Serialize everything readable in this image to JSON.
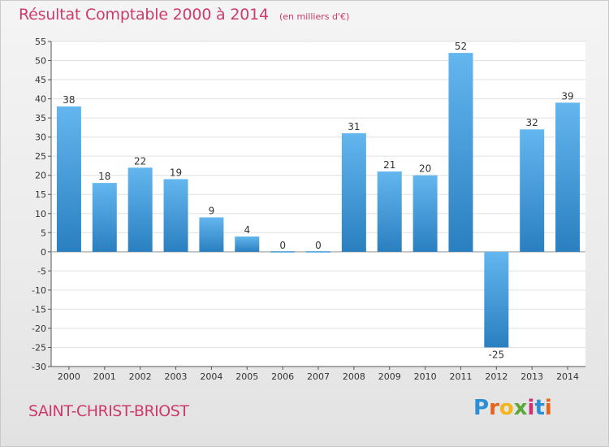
{
  "header": {
    "title": "Résultat Comptable 2000 à 2014",
    "subtitle": "(en milliers d'€)"
  },
  "footer": {
    "commune": "SAINT-CHRIST-BRIOST",
    "logo_text": "Proxiti",
    "logo_colors": [
      "#2c8fd6",
      "#e8631a",
      "#f3b51a",
      "#5aa83a",
      "#d0306d",
      "#2c8fd6",
      "#e8631a"
    ]
  },
  "colors": {
    "bar_light": "#63b6ee",
    "bar_dark": "#2a7fc0",
    "axis": "#555555",
    "grid": "#e0e0e0",
    "plot_bg": "#ffffff",
    "title": "#cc3b6b"
  },
  "chart_data": {
    "type": "bar",
    "title": "Résultat Comptable 2000 à 2014",
    "subtitle": "(en milliers d'€)",
    "xlabel": "",
    "ylabel": "",
    "categories": [
      "2000",
      "2001",
      "2002",
      "2003",
      "2004",
      "2005",
      "2006",
      "2007",
      "2008",
      "2009",
      "2010",
      "2011",
      "2012",
      "2013",
      "2014"
    ],
    "values": [
      38,
      18,
      22,
      19,
      9,
      4,
      0,
      0,
      31,
      21,
      20,
      52,
      -25,
      32,
      39
    ],
    "data_labels": [
      "38",
      "18",
      "22",
      "19",
      "9",
      "4",
      "0",
      "0",
      "31",
      "21",
      "20",
      "52",
      "-25",
      "32",
      "39"
    ],
    "ylim": [
      -30,
      55
    ],
    "yticks": [
      55,
      50,
      45,
      40,
      35,
      30,
      25,
      20,
      15,
      10,
      5,
      0,
      -5,
      -10,
      -15,
      -20,
      -25,
      -30
    ],
    "grid": true,
    "legend": "none"
  }
}
